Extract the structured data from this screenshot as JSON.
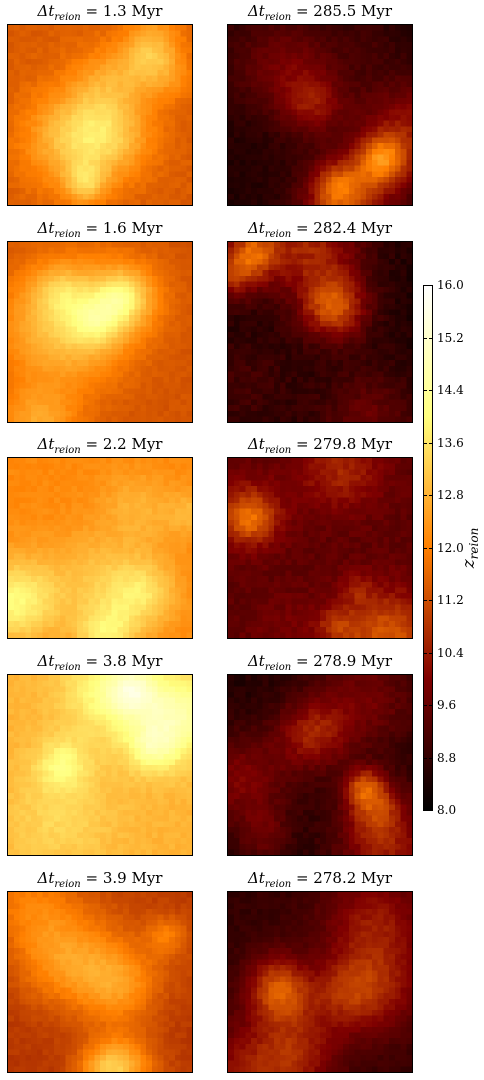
{
  "figure": {
    "title_prefix": "Δt",
    "title_sub": "reion",
    "title_mid": " = ",
    "unit": "Myr"
  },
  "chart_data": {
    "type": "heatmap",
    "colormap": "afmhot",
    "panels": [
      {
        "dt": "1.3",
        "mean_z": 11.9,
        "spread": 1.6,
        "seed": 11
      },
      {
        "dt": "285.5",
        "mean_z": 9.2,
        "spread": 2.2,
        "seed": 12
      },
      {
        "dt": "1.6",
        "mean_z": 11.7,
        "spread": 1.3,
        "seed": 21
      },
      {
        "dt": "282.4",
        "mean_z": 9.4,
        "spread": 3.0,
        "seed": 22
      },
      {
        "dt": "2.2",
        "mean_z": 12.6,
        "spread": 1.5,
        "seed": 31
      },
      {
        "dt": "279.8",
        "mean_z": 10.2,
        "spread": 2.6,
        "seed": 32
      },
      {
        "dt": "3.8",
        "mean_z": 13.3,
        "spread": 1.6,
        "seed": 41
      },
      {
        "dt": "278.9",
        "mean_z": 9.3,
        "spread": 2.5,
        "seed": 42
      },
      {
        "dt": "3.9",
        "mean_z": 11.3,
        "spread": 1.5,
        "seed": 51
      },
      {
        "dt": "278.2",
        "mean_z": 9.4,
        "spread": 2.0,
        "seed": 52
      }
    ],
    "colorbar": {
      "label": "z",
      "label_sub": "reion",
      "min": 8.0,
      "max": 16.0,
      "ticks": [
        "16.0",
        "15.2",
        "14.4",
        "13.6",
        "12.8",
        "12.0",
        "11.2",
        "10.4",
        "9.6",
        "8.8",
        "8.0"
      ]
    }
  }
}
